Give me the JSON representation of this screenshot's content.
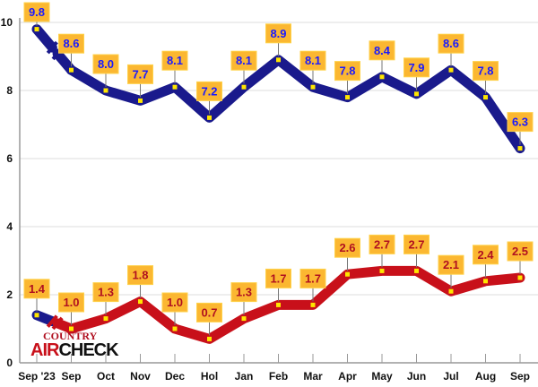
{
  "chart_data": {
    "type": "line",
    "categories": [
      "Sep '23",
      "Sep",
      "Oct",
      "Nov",
      "Dec",
      "Hol",
      "Jan",
      "Feb",
      "Mar",
      "Apr",
      "May",
      "Jun",
      "Jul",
      "Aug",
      "Sep"
    ],
    "series": [
      {
        "name": "blue",
        "color": "#1a1a8c",
        "label_color": "#1a1aff",
        "values": [
          9.8,
          8.6,
          8.0,
          7.7,
          8.1,
          7.2,
          8.1,
          8.9,
          8.1,
          7.8,
          8.4,
          7.9,
          8.6,
          7.8,
          6.3
        ]
      },
      {
        "name": "red",
        "color": "#c8101a",
        "label_color": "#b01020",
        "values": [
          1.4,
          1.0,
          1.3,
          1.8,
          1.0,
          0.7,
          1.3,
          1.7,
          1.7,
          2.6,
          2.7,
          2.7,
          2.1,
          2.4,
          2.5
        ]
      }
    ],
    "yticks": [
      0,
      2,
      4,
      6,
      8,
      10
    ],
    "ylim": [
      0,
      10
    ],
    "grid": true,
    "title": "",
    "xlabel": "",
    "ylabel": ""
  },
  "logo": {
    "top": "COUNTRY",
    "bottom_red": "AIR",
    "bottom_black": "CHECK"
  }
}
